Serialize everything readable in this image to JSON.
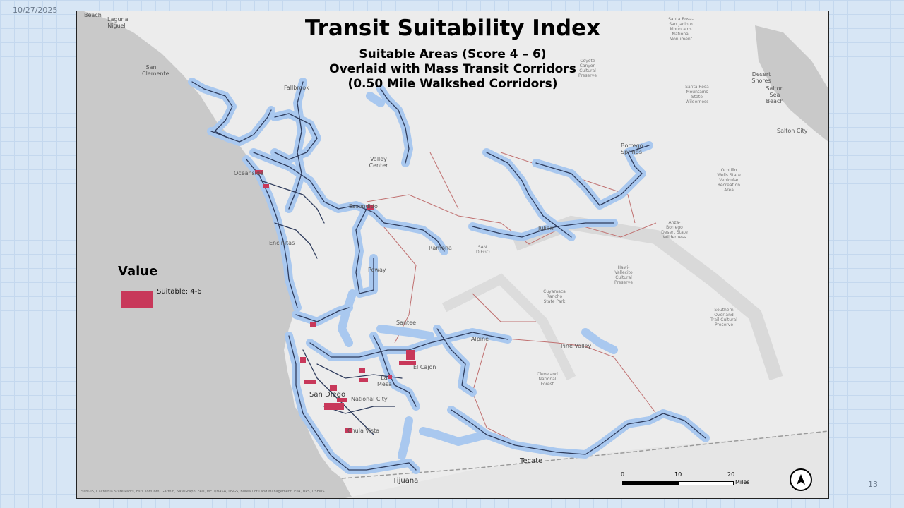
{
  "slide": {
    "date": "10/27/2025",
    "page_number": "13"
  },
  "map": {
    "title": "Transit Suitability Index",
    "subtitle_lines": [
      "Suitable Areas (Score 4 – 6)",
      "Overlaid with Mass Transit Corridors",
      "(0.50 Mile Walkshed Corridors)"
    ],
    "legend": {
      "title": "Value",
      "items": [
        {
          "label": "Suitable: 4-6",
          "color": "#c8385a"
        }
      ]
    },
    "scale_bar": {
      "ticks": [
        "0",
        "10",
        "20"
      ],
      "unit": "Miles"
    },
    "north_arrow": "north-arrow-icon",
    "attribution": "SanGIS, California State Parks, Esri, TomTom, Garmin, SafeGraph, FAO, METI/NASA, USGS, Bureau of Land Management, EPA, NPS, USFWS",
    "colors": {
      "walkshed": "#a9c8ef",
      "corridor": "#2f3c5c",
      "suitable": "#c8385a",
      "ocean": "#c9c9c9",
      "land": "#ececec",
      "highway": "#c07070"
    },
    "places": {
      "beach": "Beach",
      "laguna_niguel": "Laguna Niguel",
      "san_clemente": "San Clemente",
      "fallbrook": "Fallbrook",
      "santa_rosa": "Santa Rosa-San Jacinto Mountains National Monument",
      "coyote_canyon": "Coyote Canyon Cultural Preserve",
      "santa_rosa_wilderness": "Santa Rosa Mountains State Wilderness",
      "desert_shores": "Desert Shores",
      "salton_sea_beach": "Salton Sea Beach",
      "salton_city": "Salton City",
      "valley_center": "Valley Center",
      "borrego": "Borrego Springs",
      "ocotillo": "Ocotillo Wells State Vehicular Recreation Area",
      "oceanside": "Oceanside",
      "escondido": "Escondido",
      "anza_borrego": "Anza-Borrego Desert State Wilderness",
      "julian": "Julian",
      "encinitas": "Encinitas",
      "ramona": "Ramona",
      "san_diego_county": "SAN DIEGO",
      "poway": "Poway",
      "hawi": "Hawi-Vallecito Cultural Preserve",
      "cuyamaca": "Cuyamaca Rancho State Park",
      "southern_overland": "Southern Overland Trail Cultural Preserve",
      "santee": "Santee",
      "alpine": "Alpine",
      "pine_valley": "Pine Valley",
      "cleveland": "Cleveland National Forest",
      "el_cajon": "El Cajon",
      "la_mesa": "La Mesa",
      "san_diego": "San Diego",
      "national_city": "National City",
      "chula_vista": "Chula Vista",
      "tecate": "Tecate",
      "tijuana": "Tijuana"
    }
  }
}
